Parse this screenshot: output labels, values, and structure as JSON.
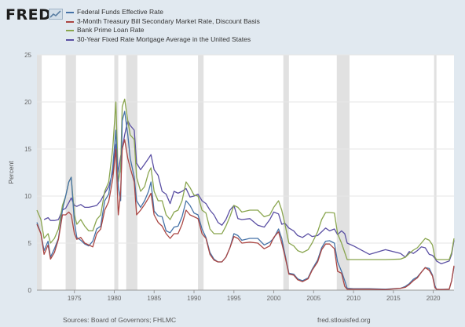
{
  "brand": {
    "name": "FRED"
  },
  "footer": {
    "sources": "Sources: Board of Governors; FHLMC",
    "site": "fred.stlouisfed.org"
  },
  "colors": {
    "page_bg": "#e1e9f0",
    "plot_bg": "#ffffff",
    "recession": "#e1e1e1",
    "grid": "#e6e6e6",
    "axis_text": "#666666"
  },
  "chart_data": {
    "type": "line",
    "title": "",
    "xlabel": "",
    "ylabel": "Percent",
    "xlim": [
      1970.3,
      2022.6
    ],
    "ylim": [
      0,
      25
    ],
    "yticks": [
      "0",
      "5",
      "10",
      "15",
      "20",
      "25"
    ],
    "xticks": [
      "1975",
      "1980",
      "1985",
      "1990",
      "1995",
      "2000",
      "2005",
      "2010",
      "2015",
      "2020"
    ],
    "grid": "horizontal",
    "legend_position": "top-left",
    "recessions": [
      [
        1970.0,
        1970.9
      ],
      [
        1973.9,
        1975.2
      ],
      [
        1980.0,
        1980.5
      ],
      [
        1981.5,
        1982.9
      ],
      [
        1990.5,
        1991.2
      ],
      [
        2001.2,
        2001.9
      ],
      [
        2007.9,
        2009.5
      ],
      [
        2020.1,
        2020.4
      ]
    ],
    "series": [
      {
        "name": "Federal Funds Effective Rate",
        "color": "#4572a7",
        "x": [
          1970.3,
          1970.8,
          1971.2,
          1971.7,
          1972.0,
          1972.5,
          1973.0,
          1973.5,
          1973.9,
          1974.3,
          1974.6,
          1975.0,
          1975.3,
          1975.8,
          1976.3,
          1976.8,
          1977.3,
          1977.8,
          1978.3,
          1978.8,
          1979.3,
          1979.8,
          1980.2,
          1980.5,
          1980.8,
          1981.0,
          1981.3,
          1981.7,
          1982.0,
          1982.5,
          1982.8,
          1983.3,
          1983.8,
          1984.3,
          1984.6,
          1985.0,
          1985.5,
          1986.0,
          1986.5,
          1987.0,
          1987.5,
          1988.0,
          1988.5,
          1989.0,
          1989.5,
          1990.0,
          1990.5,
          1991.0,
          1991.5,
          1992.0,
          1992.5,
          1993.0,
          1993.5,
          1994.0,
          1994.5,
          1995.0,
          1995.5,
          1996.0,
          1997.0,
          1998.0,
          1998.8,
          1999.5,
          2000.0,
          2000.6,
          2001.0,
          2001.4,
          2001.9,
          2002.5,
          2003.0,
          2003.6,
          2004.3,
          2004.8,
          2005.5,
          2006.0,
          2006.5,
          2007.0,
          2007.6,
          2008.0,
          2008.5,
          2008.9,
          2009.2,
          2010.0,
          2012.0,
          2014.0,
          2015.9,
          2016.5,
          2017.0,
          2017.5,
          2018.0,
          2018.5,
          2019.0,
          2019.5,
          2019.9,
          2020.2,
          2020.4,
          2021.0,
          2022.0,
          2022.3,
          2022.6
        ],
        "y": [
          7.2,
          6.0,
          4.2,
          5.2,
          3.5,
          4.4,
          5.5,
          8.5,
          10.0,
          11.5,
          12.0,
          7.2,
          5.6,
          5.3,
          4.9,
          4.7,
          5.2,
          6.5,
          6.8,
          9.5,
          10.2,
          13.0,
          17.0,
          11.0,
          9.5,
          18.0,
          19.0,
          16.5,
          14.0,
          12.0,
          9.5,
          8.8,
          9.5,
          10.5,
          11.5,
          8.4,
          7.9,
          7.8,
          6.3,
          6.1,
          6.7,
          6.8,
          7.8,
          9.5,
          9.0,
          8.2,
          8.0,
          6.5,
          5.6,
          4.0,
          3.3,
          3.0,
          3.0,
          3.5,
          4.5,
          6.0,
          5.8,
          5.3,
          5.5,
          5.5,
          4.8,
          5.1,
          5.5,
          6.5,
          5.5,
          3.8,
          1.8,
          1.7,
          1.2,
          1.0,
          1.3,
          2.2,
          3.2,
          4.5,
          5.2,
          5.25,
          5.0,
          3.0,
          2.0,
          1.0,
          0.2,
          0.15,
          0.15,
          0.1,
          0.2,
          0.4,
          0.7,
          1.15,
          1.4,
          1.9,
          2.4,
          2.3,
          1.6,
          0.5,
          0.08,
          0.08,
          0.1,
          1.0,
          2.5
        ]
      },
      {
        "name": "3-Month Treasury Bill Secondary Market Rate, Discount Basis",
        "color": "#aa4643",
        "x": [
          1970.3,
          1970.8,
          1971.2,
          1971.7,
          1972.0,
          1972.5,
          1973.0,
          1973.5,
          1973.9,
          1974.3,
          1974.6,
          1975.0,
          1975.3,
          1975.8,
          1976.3,
          1976.8,
          1977.3,
          1977.8,
          1978.3,
          1978.8,
          1979.3,
          1979.8,
          1980.2,
          1980.5,
          1980.8,
          1981.0,
          1981.3,
          1981.7,
          1982.0,
          1982.5,
          1982.8,
          1983.3,
          1983.8,
          1984.3,
          1984.6,
          1985.0,
          1985.5,
          1986.0,
          1986.5,
          1987.0,
          1987.5,
          1988.0,
          1988.5,
          1989.0,
          1989.5,
          1990.0,
          1990.5,
          1991.0,
          1991.5,
          1992.0,
          1992.5,
          1993.0,
          1993.5,
          1994.0,
          1994.5,
          1995.0,
          1995.5,
          1996.0,
          1997.0,
          1998.0,
          1998.8,
          1999.5,
          2000.0,
          2000.6,
          2001.0,
          2001.4,
          2001.9,
          2002.5,
          2003.0,
          2003.6,
          2004.3,
          2004.8,
          2005.5,
          2006.0,
          2006.5,
          2007.0,
          2007.6,
          2008.0,
          2008.5,
          2008.9,
          2009.2,
          2010.0,
          2012.0,
          2014.0,
          2015.9,
          2016.5,
          2017.0,
          2017.5,
          2018.0,
          2018.5,
          2019.0,
          2019.5,
          2019.9,
          2020.2,
          2020.4,
          2021.0,
          2022.0,
          2022.3,
          2022.6
        ],
        "y": [
          7.0,
          6.0,
          3.8,
          4.8,
          3.3,
          4.0,
          5.4,
          8.0,
          8.0,
          8.3,
          8.0,
          6.0,
          5.4,
          5.6,
          5.0,
          4.8,
          4.6,
          6.0,
          6.5,
          8.5,
          9.4,
          11.8,
          15.0,
          8.0,
          10.5,
          15.0,
          16.0,
          14.0,
          13.0,
          11.5,
          8.0,
          8.5,
          9.1,
          9.8,
          10.3,
          8.0,
          7.2,
          6.8,
          6.0,
          5.5,
          6.0,
          6.0,
          7.0,
          8.5,
          8.0,
          7.8,
          7.6,
          6.0,
          5.5,
          3.8,
          3.2,
          3.0,
          3.0,
          3.5,
          4.5,
          5.7,
          5.5,
          5.0,
          5.1,
          5.0,
          4.4,
          4.7,
          5.6,
          6.2,
          5.0,
          3.6,
          1.7,
          1.6,
          1.1,
          0.9,
          1.2,
          2.1,
          3.0,
          4.3,
          4.9,
          4.9,
          4.4,
          2.0,
          1.8,
          0.4,
          0.1,
          0.1,
          0.1,
          0.05,
          0.2,
          0.3,
          0.6,
          1.0,
          1.3,
          1.9,
          2.4,
          2.1,
          1.5,
          0.3,
          0.1,
          0.05,
          0.1,
          1.0,
          2.6
        ]
      },
      {
        "name": "Bank Prime Loan Rate",
        "color": "#89a54e",
        "x": [
          1970.3,
          1970.8,
          1971.2,
          1971.7,
          1972.0,
          1972.5,
          1973.0,
          1973.5,
          1973.9,
          1974.3,
          1974.6,
          1975.0,
          1975.3,
          1975.8,
          1976.3,
          1976.8,
          1977.3,
          1977.8,
          1978.3,
          1978.8,
          1979.3,
          1979.8,
          1980.2,
          1980.5,
          1980.8,
          1981.0,
          1981.3,
          1981.7,
          1982.0,
          1982.5,
          1982.8,
          1983.3,
          1983.8,
          1984.3,
          1984.6,
          1985.0,
          1985.5,
          1986.0,
          1986.5,
          1987.0,
          1987.5,
          1988.0,
          1988.5,
          1989.0,
          1989.5,
          1990.0,
          1990.5,
          1991.0,
          1991.5,
          1992.0,
          1992.5,
          1993.0,
          1993.5,
          1994.0,
          1994.5,
          1995.0,
          1995.5,
          1996.0,
          1997.0,
          1998.0,
          1998.8,
          1999.5,
          2000.0,
          2000.6,
          2001.0,
          2001.4,
          2001.9,
          2002.5,
          2003.0,
          2003.6,
          2004.3,
          2004.8,
          2005.5,
          2006.0,
          2006.5,
          2007.0,
          2007.6,
          2008.0,
          2008.5,
          2008.9,
          2009.2,
          2010.0,
          2012.0,
          2014.0,
          2015.9,
          2016.5,
          2017.0,
          2017.5,
          2018.0,
          2018.5,
          2019.0,
          2019.5,
          2019.9,
          2020.2,
          2020.4,
          2021.0,
          2022.0,
          2022.3,
          2022.6
        ],
        "y": [
          8.5,
          7.5,
          5.5,
          6.0,
          5.0,
          5.5,
          6.5,
          9.0,
          10.0,
          11.5,
          12.0,
          8.0,
          7.0,
          7.5,
          6.8,
          6.3,
          6.3,
          7.5,
          8.0,
          10.5,
          11.5,
          15.0,
          20.0,
          11.5,
          13.0,
          19.5,
          20.3,
          18.0,
          16.5,
          16.0,
          12.0,
          10.5,
          11.0,
          12.5,
          13.0,
          10.5,
          9.5,
          9.5,
          8.0,
          7.5,
          8.3,
          8.5,
          9.5,
          11.5,
          10.9,
          10.1,
          10.0,
          8.5,
          8.2,
          6.5,
          6.0,
          6.0,
          6.0,
          6.8,
          7.8,
          9.0,
          8.8,
          8.3,
          8.5,
          8.5,
          7.8,
          8.0,
          8.8,
          9.5,
          8.5,
          7.0,
          5.0,
          4.7,
          4.2,
          4.0,
          4.3,
          5.0,
          6.2,
          7.5,
          8.25,
          8.25,
          8.2,
          6.0,
          5.0,
          4.0,
          3.25,
          3.25,
          3.25,
          3.25,
          3.3,
          3.5,
          3.9,
          4.25,
          4.5,
          5.0,
          5.5,
          5.3,
          4.8,
          3.5,
          3.25,
          3.25,
          3.25,
          4.0,
          5.5
        ]
      },
      {
        "name": "30-Year Fixed Rate Mortgage Average in the United States",
        "color": "#5a4fa3",
        "x": [
          1971.2,
          1971.7,
          1972.0,
          1972.5,
          1973.0,
          1973.5,
          1973.9,
          1974.3,
          1974.6,
          1975.0,
          1975.3,
          1975.8,
          1976.3,
          1976.8,
          1977.3,
          1977.8,
          1978.3,
          1978.8,
          1979.3,
          1979.8,
          1980.2,
          1980.5,
          1980.8,
          1981.0,
          1981.3,
          1981.7,
          1982.0,
          1982.5,
          1982.8,
          1983.3,
          1983.8,
          1984.3,
          1984.6,
          1985.0,
          1985.5,
          1986.0,
          1986.5,
          1987.0,
          1987.5,
          1988.0,
          1988.5,
          1989.0,
          1989.5,
          1990.0,
          1990.5,
          1991.0,
          1991.5,
          1992.0,
          1992.5,
          1993.0,
          1993.5,
          1994.0,
          1994.5,
          1995.0,
          1995.5,
          1996.0,
          1997.0,
          1998.0,
          1998.8,
          1999.5,
          2000.0,
          2000.6,
          2001.0,
          2001.4,
          2001.9,
          2002.5,
          2003.0,
          2003.6,
          2004.3,
          2004.8,
          2005.5,
          2006.0,
          2006.5,
          2007.0,
          2007.6,
          2008.0,
          2008.5,
          2008.9,
          2009.2,
          2010.0,
          2012.0,
          2014.0,
          2015.9,
          2016.5,
          2017.0,
          2017.5,
          2018.0,
          2018.5,
          2019.0,
          2019.5,
          2019.9,
          2020.2,
          2020.4,
          2021.0,
          2022.0,
          2022.3,
          2022.6
        ],
        "y": [
          7.5,
          7.7,
          7.4,
          7.4,
          7.5,
          8.5,
          8.7,
          9.3,
          9.8,
          9.0,
          8.9,
          9.1,
          8.8,
          8.8,
          8.9,
          9.0,
          9.5,
          10.3,
          11.0,
          12.5,
          15.5,
          12.5,
          14.2,
          15.0,
          16.5,
          18.0,
          17.5,
          17.0,
          13.5,
          12.8,
          13.4,
          14.0,
          14.4,
          12.8,
          12.2,
          10.5,
          10.2,
          9.2,
          10.5,
          10.3,
          10.5,
          10.8,
          9.9,
          10.0,
          10.2,
          9.5,
          9.2,
          8.5,
          8.0,
          7.2,
          6.9,
          7.5,
          8.5,
          9.0,
          7.6,
          7.5,
          7.6,
          6.9,
          6.7,
          7.5,
          8.3,
          8.1,
          7.0,
          7.1,
          6.6,
          6.3,
          5.8,
          5.6,
          6.0,
          5.7,
          5.8,
          6.2,
          6.6,
          6.3,
          6.5,
          5.9,
          6.3,
          6.0,
          5.0,
          4.7,
          3.8,
          4.3,
          3.9,
          3.5,
          4.1,
          3.9,
          4.2,
          4.6,
          4.5,
          3.8,
          3.7,
          3.4,
          3.1,
          2.8,
          3.1,
          3.8,
          5.3
        ]
      }
    ]
  }
}
